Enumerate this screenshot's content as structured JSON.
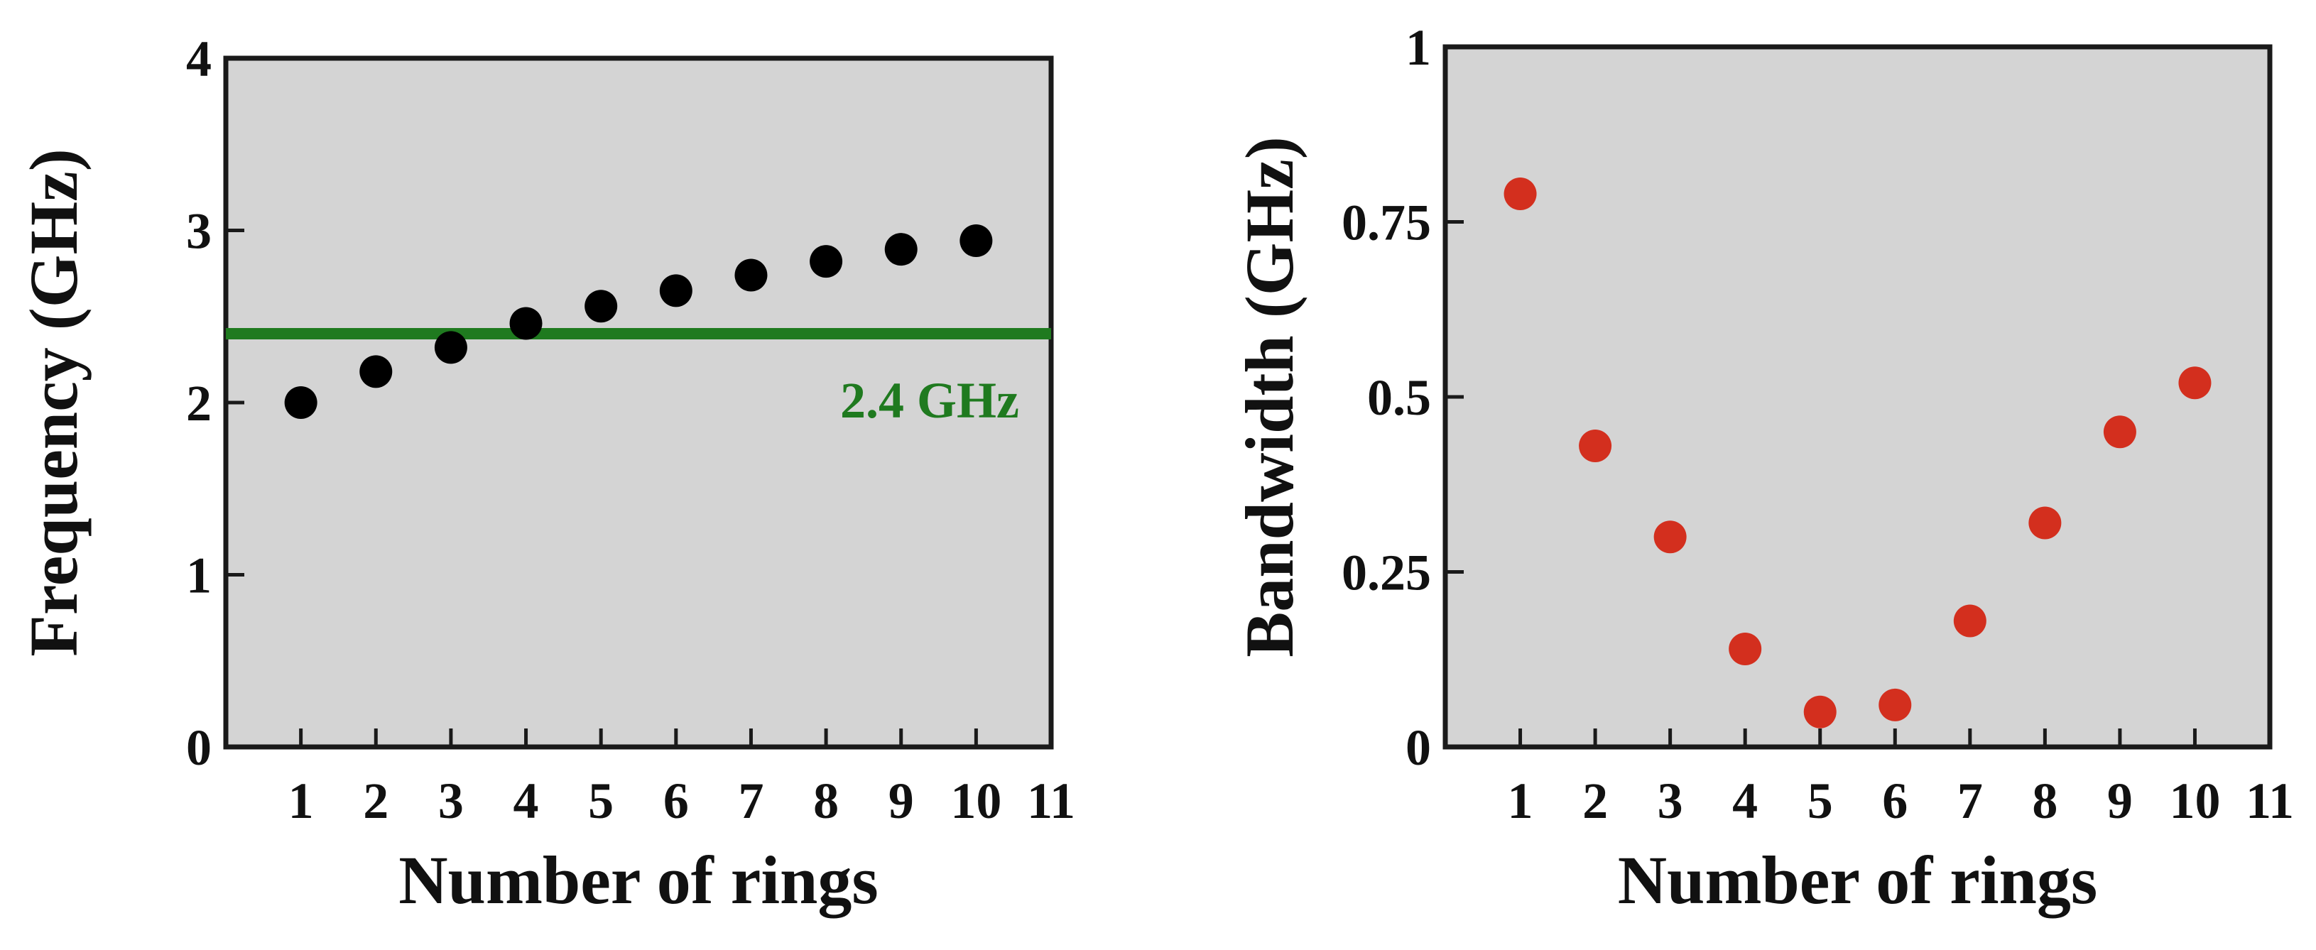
{
  "chart_data": [
    {
      "type": "scatter",
      "title": "",
      "xlabel": "Number of rings",
      "ylabel": "Frequency (GHz)",
      "xlim": [
        0,
        11
      ],
      "ylim": [
        0,
        4
      ],
      "x_ticks": [
        1,
        2,
        3,
        4,
        5,
        6,
        7,
        8,
        9,
        10,
        11
      ],
      "y_ticks": [
        0,
        1,
        2,
        3,
        4
      ],
      "grid": false,
      "background": "#d4d4d4",
      "series": [
        {
          "name": "Frequency",
          "color": "#000000",
          "x": [
            1,
            2,
            3,
            4,
            5,
            6,
            7,
            8,
            9,
            10
          ],
          "y": [
            2.0,
            2.18,
            2.32,
            2.46,
            2.56,
            2.65,
            2.74,
            2.82,
            2.89,
            2.94
          ]
        }
      ],
      "reference_line": {
        "y": 2.4,
        "label": "2.4 GHz",
        "color": "#1f7a1f"
      }
    },
    {
      "type": "scatter",
      "title": "",
      "xlabel": "Number of rings",
      "ylabel": "Bandwidth (GHz)",
      "xlim": [
        0,
        11
      ],
      "ylim": [
        0,
        1
      ],
      "x_ticks": [
        1,
        2,
        3,
        4,
        5,
        6,
        7,
        8,
        9,
        10,
        11
      ],
      "y_ticks": [
        0,
        0.25,
        0.5,
        0.75,
        1
      ],
      "grid": false,
      "background": "#d4d4d4",
      "series": [
        {
          "name": "Bandwidth",
          "color": "#d32f1e",
          "x": [
            1,
            2,
            3,
            4,
            5,
            6,
            7,
            8,
            9,
            10
          ],
          "y": [
            0.79,
            0.43,
            0.3,
            0.14,
            0.05,
            0.06,
            0.18,
            0.32,
            0.45,
            0.52
          ]
        }
      ]
    }
  ]
}
